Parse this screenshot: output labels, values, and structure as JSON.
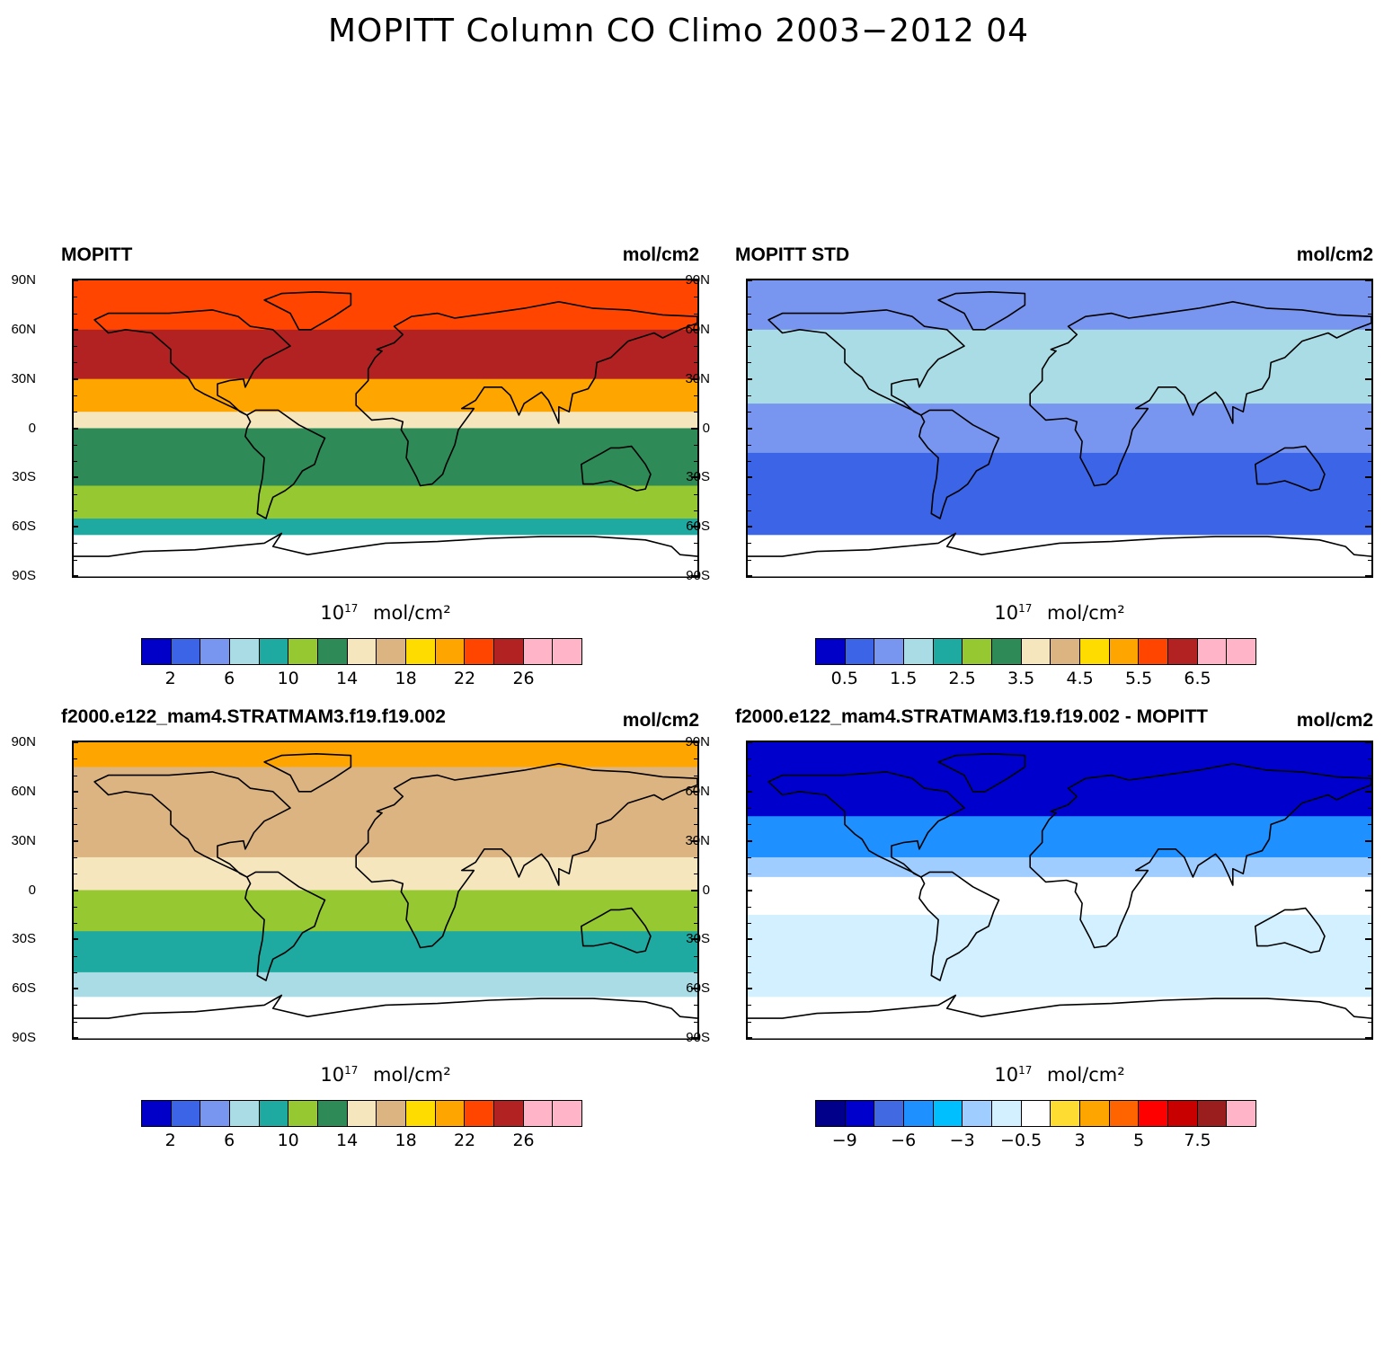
{
  "title": "MOPITT Column CO Climo 2003−2012 04",
  "lat_ticks": [
    "90N",
    "60N",
    "30N",
    "0",
    "30S",
    "60S",
    "90S"
  ],
  "colorbar_title": {
    "base": "10",
    "exp": "17",
    "unit": "mol/cm²"
  },
  "chart_data": [
    {
      "type": "heatmap",
      "id": "mopitt",
      "title": "MOPITT",
      "units": "mol/cm2",
      "colorbar_unit": "10^17 mol/cm^2",
      "levels_labels": [
        "2",
        "6",
        "10",
        "14",
        "18",
        "22",
        "26"
      ],
      "colors": [
        "#0000c8",
        "#3c64e6",
        "#7896f0",
        "#aadce6",
        "#1eaaa0",
        "#96c832",
        "#2e8b57",
        "#f5e6be",
        "#dcb482",
        "#ffdc00",
        "#ffa500",
        "#ff4500",
        "#b22222",
        "#ffb4c8",
        "#ffb4c8"
      ],
      "zonal_bands": [
        {
          "lat": [
            60,
            90
          ],
          "value": 22
        },
        {
          "lat": [
            30,
            60
          ],
          "value": 25
        },
        {
          "lat": [
            10,
            30
          ],
          "value": 20
        },
        {
          "lat": [
            0,
            10
          ],
          "value": 15
        },
        {
          "lat": [
            -35,
            0
          ],
          "value": 12
        },
        {
          "lat": [
            -55,
            -35
          ],
          "value": 11
        },
        {
          "lat": [
            -65,
            -55
          ],
          "value": 9
        },
        {
          "lat": [
            -90,
            -65
          ],
          "value": null
        }
      ]
    },
    {
      "type": "heatmap",
      "id": "mopitt-std",
      "title": "MOPITT STD",
      "units": "mol/cm2",
      "colorbar_unit": "10^17 mol/cm^2",
      "levels_labels": [
        "0.5",
        "1.5",
        "2.5",
        "3.5",
        "4.5",
        "5.5",
        "6.5"
      ],
      "colors": [
        "#0000c8",
        "#3c64e6",
        "#7896f0",
        "#aadce6",
        "#1eaaa0",
        "#96c832",
        "#2e8b57",
        "#f5e6be",
        "#dcb482",
        "#ffdc00",
        "#ffa500",
        "#ff4500",
        "#b22222",
        "#ffb4c8",
        "#ffb4c8"
      ],
      "zonal_bands": [
        {
          "lat": [
            60,
            90
          ],
          "value": 1.0
        },
        {
          "lat": [
            15,
            60
          ],
          "value": 1.6
        },
        {
          "lat": [
            -15,
            15
          ],
          "value": 1.2
        },
        {
          "lat": [
            -65,
            -15
          ],
          "value": 0.8
        },
        {
          "lat": [
            -90,
            -65
          ],
          "value": null
        }
      ]
    },
    {
      "type": "heatmap",
      "id": "model",
      "title": "f2000.e122_mam4.STRATMAM3.f19.f19.002",
      "units": "mol/cm2",
      "colorbar_unit": "10^17 mol/cm^2",
      "levels_labels": [
        "2",
        "6",
        "10",
        "14",
        "18",
        "22",
        "26"
      ],
      "colors": [
        "#0000c8",
        "#3c64e6",
        "#7896f0",
        "#aadce6",
        "#1eaaa0",
        "#96c832",
        "#2e8b57",
        "#f5e6be",
        "#dcb482",
        "#ffdc00",
        "#ffa500",
        "#ff4500",
        "#b22222",
        "#ffb4c8",
        "#ffb4c8"
      ],
      "zonal_bands": [
        {
          "lat": [
            75,
            90
          ],
          "value": 20
        },
        {
          "lat": [
            20,
            75
          ],
          "value": 17
        },
        {
          "lat": [
            0,
            20
          ],
          "value": 15
        },
        {
          "lat": [
            -25,
            0
          ],
          "value": 11
        },
        {
          "lat": [
            -50,
            -25
          ],
          "value": 9
        },
        {
          "lat": [
            -65,
            -50
          ],
          "value": 7
        },
        {
          "lat": [
            -90,
            -65
          ],
          "value": null
        }
      ]
    },
    {
      "type": "heatmap",
      "id": "diff",
      "title": "f2000.e122_mam4.STRATMAM3.f19.f19.002 - MOPITT",
      "units": "mol/cm2",
      "colorbar_unit": "10^17 mol/cm^2",
      "levels_labels": [
        "−9",
        "−6",
        "−3",
        "−0.5",
        "3",
        "5",
        "7.5"
      ],
      "colors": [
        "#00008b",
        "#0000cd",
        "#4169e1",
        "#1e90ff",
        "#00bfff",
        "#a0cdff",
        "#d2f0ff",
        "#ffffff",
        "#ffdc32",
        "#ffa500",
        "#ff6400",
        "#ff0000",
        "#c80000",
        "#9b1e1e",
        "#ffb4c8"
      ],
      "zonal_bands": [
        {
          "lat": [
            45,
            90
          ],
          "value": -9
        },
        {
          "lat": [
            20,
            45
          ],
          "value": -6
        },
        {
          "lat": [
            8,
            20
          ],
          "value": -3
        },
        {
          "lat": [
            -15,
            8
          ],
          "value": 0
        },
        {
          "lat": [
            -65,
            -15
          ],
          "value": -1
        },
        {
          "lat": [
            -90,
            -65
          ],
          "value": null
        }
      ]
    }
  ]
}
